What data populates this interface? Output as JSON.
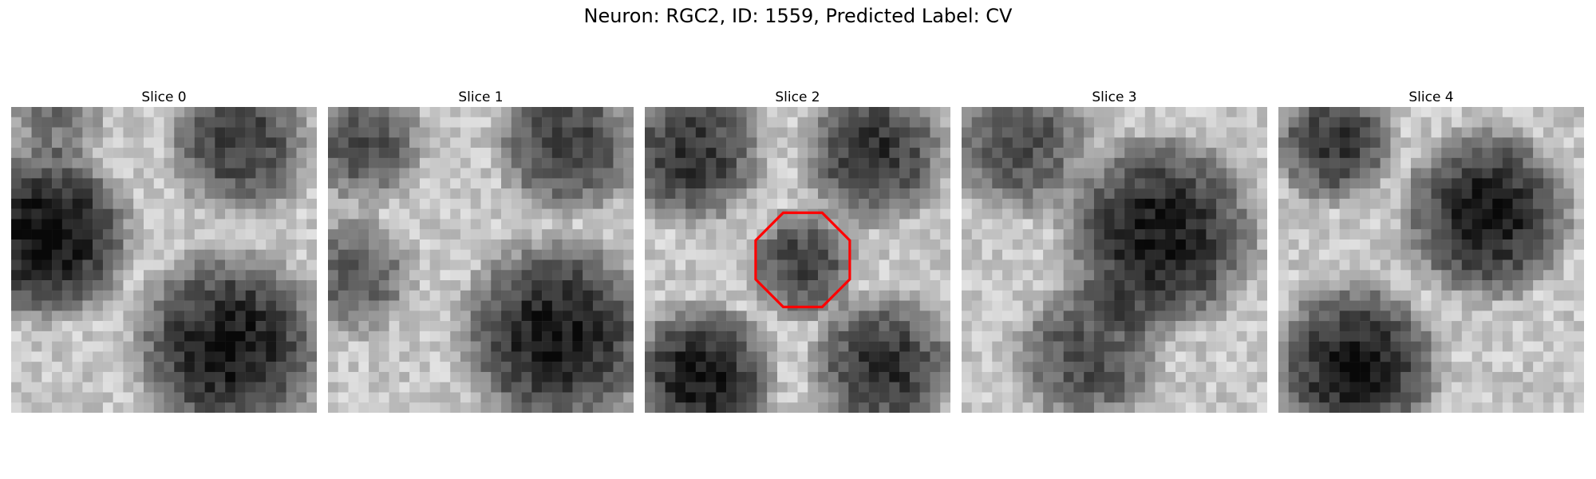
{
  "figure": {
    "title": "Neuron: RGC2, ID: 1559, Predicted Label: CV"
  },
  "panels": [
    {
      "title": "Slice 0",
      "marker": false
    },
    {
      "title": "Slice 1",
      "marker": false
    },
    {
      "title": "Slice 2",
      "marker": true
    },
    {
      "title": "Slice 3",
      "marker": false
    },
    {
      "title": "Slice 4",
      "marker": false
    }
  ],
  "colors": {
    "marker": "#ff0000",
    "background": "#ffffff"
  }
}
